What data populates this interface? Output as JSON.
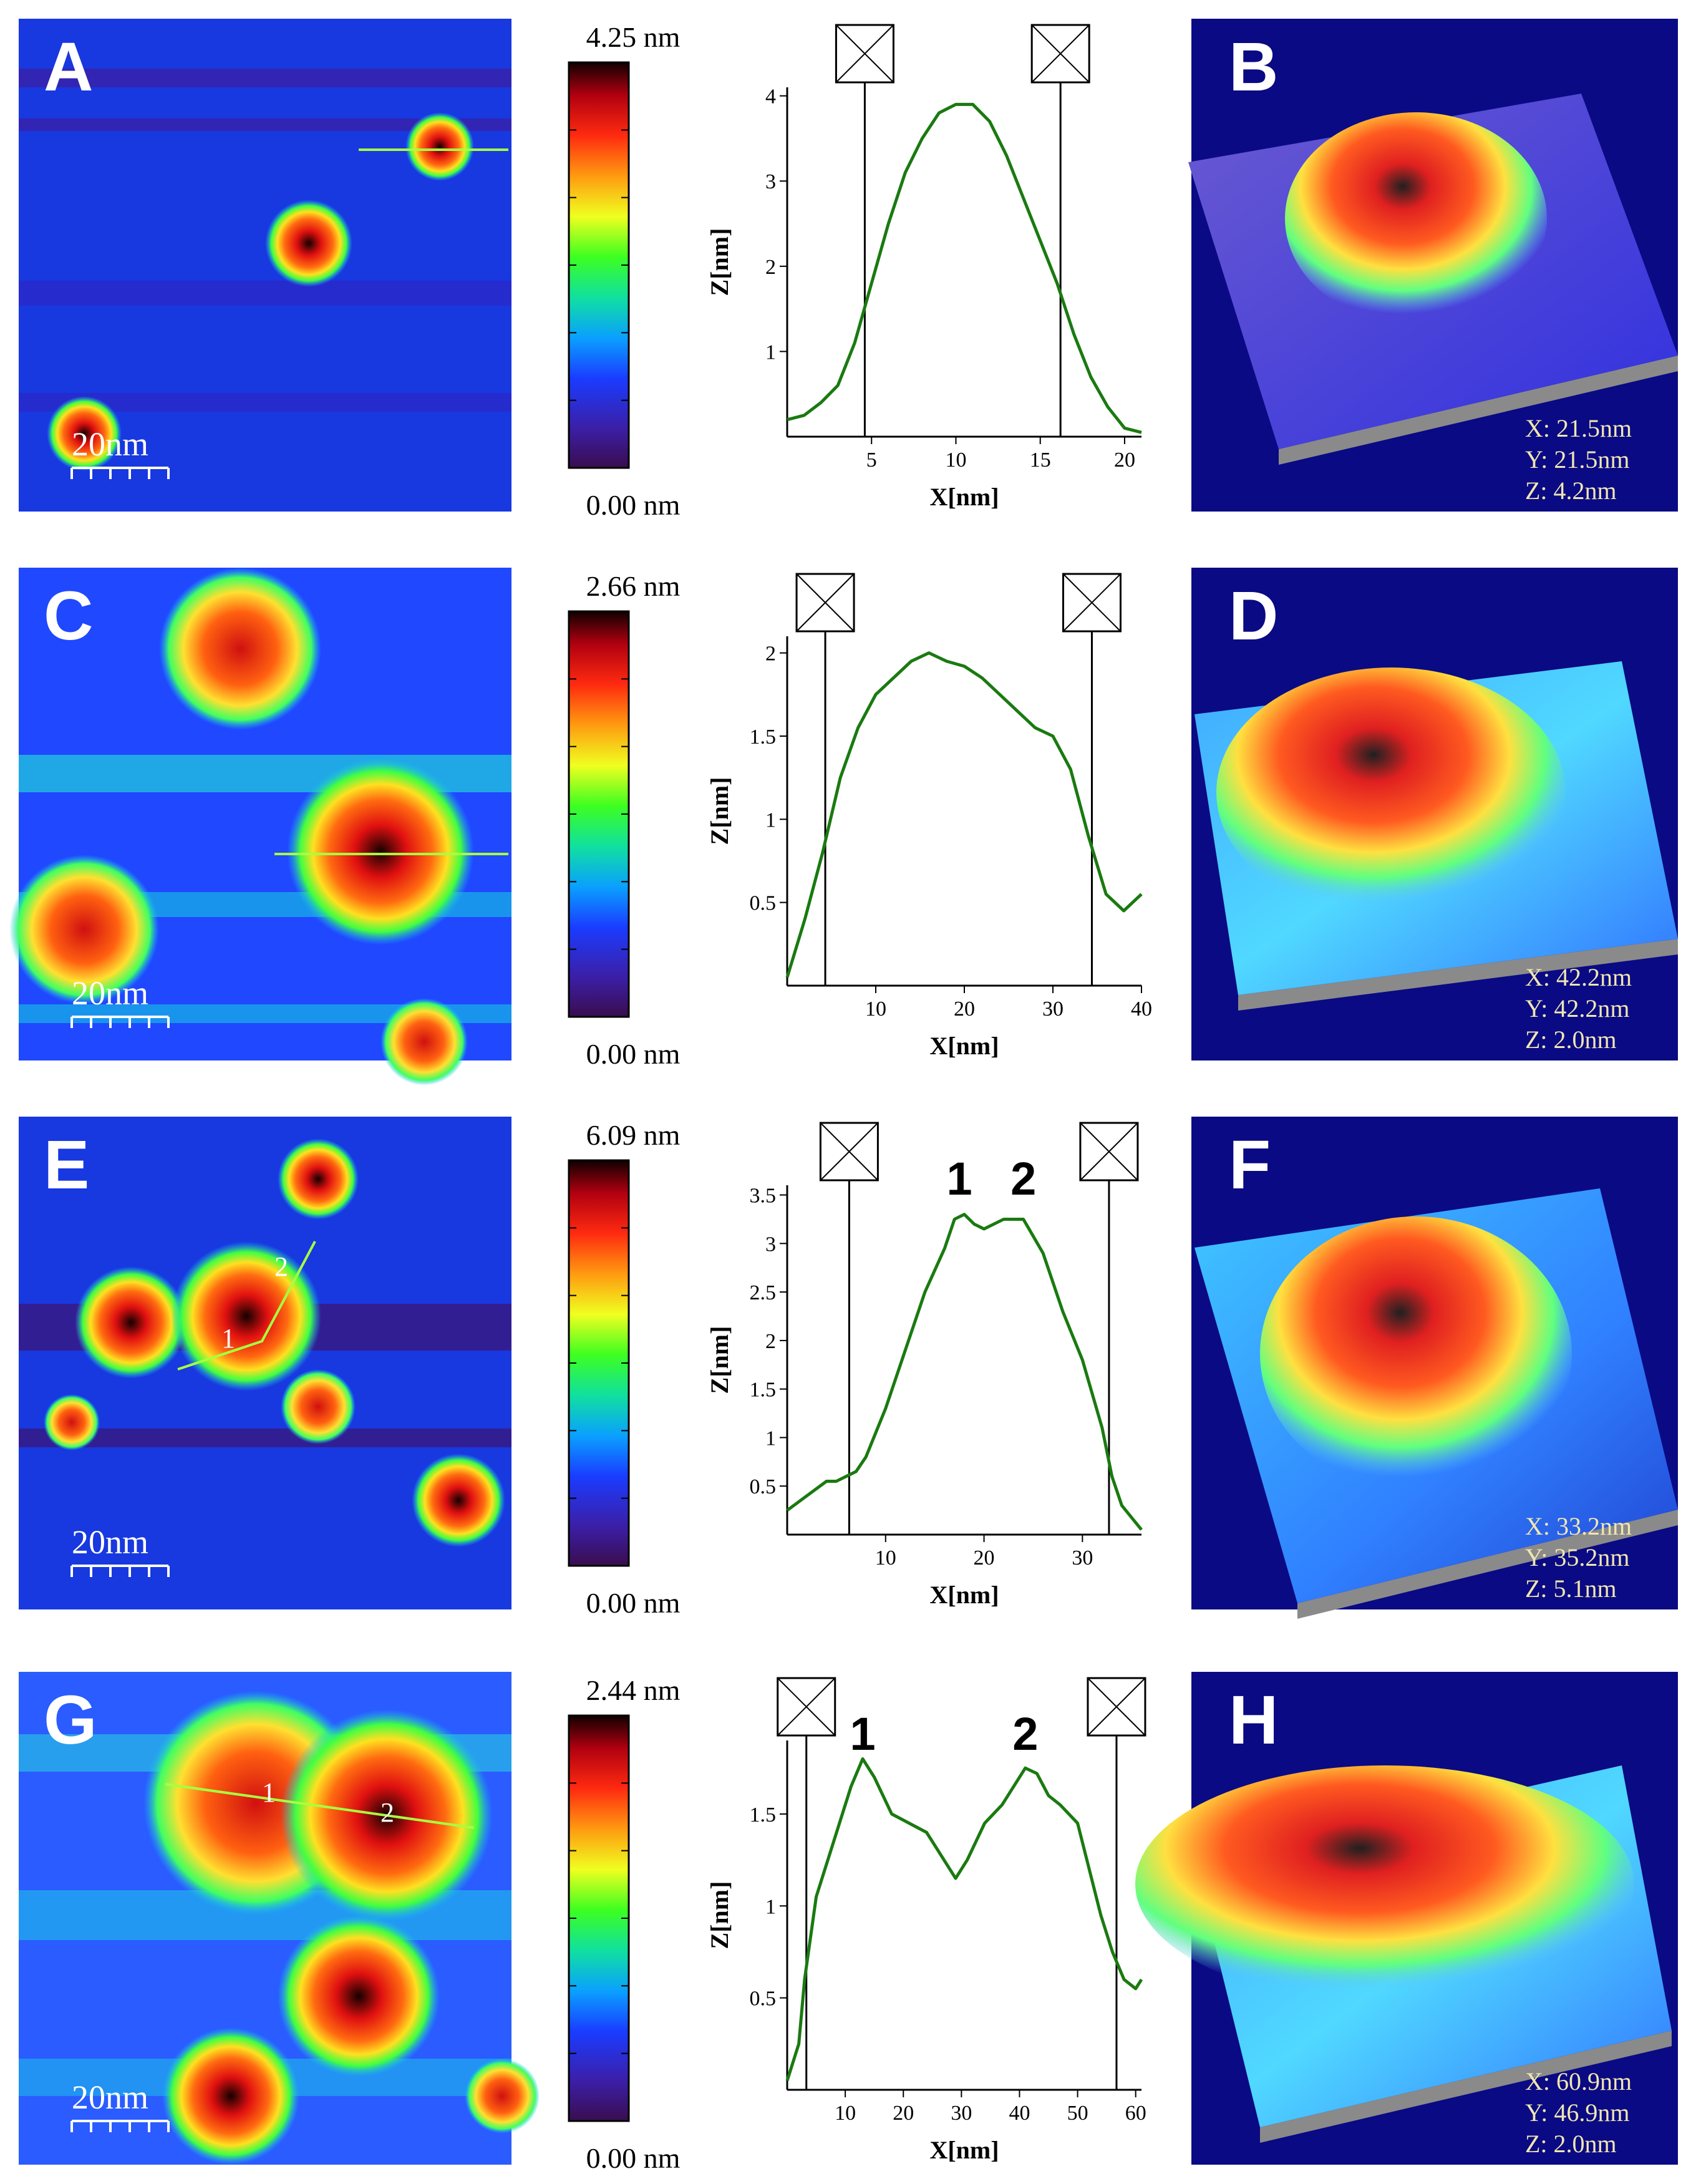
{
  "figure": {
    "rows": [
      {
        "afm_label": "A",
        "td_label": "B",
        "scale_bar": "20nm",
        "colorbar_max": "4.25 nm",
        "colorbar_min": "0.00 nm",
        "td_dims": [
          "X: 21.5nm",
          "Y: 21.5nm",
          "Z: 4.2nm"
        ],
        "peak_labels": [],
        "profile": {
          "xlabel": "X[nm]",
          "ylabel": "Z[nm]",
          "xlim": [
            0,
            21
          ],
          "ylim": [
            0,
            4.1
          ],
          "xticks": [
            5,
            10,
            15,
            20
          ],
          "yticks": [
            1,
            2,
            3,
            4
          ],
          "cursors": [
            4.6,
            16.2
          ],
          "x": [
            0,
            1,
            2,
            3,
            4,
            5,
            6,
            7,
            8,
            9,
            10,
            11,
            12,
            13,
            14,
            15,
            16,
            17,
            18,
            19,
            20,
            21
          ],
          "y": [
            0.2,
            0.25,
            0.4,
            0.6,
            1.1,
            1.8,
            2.5,
            3.1,
            3.5,
            3.8,
            3.9,
            3.9,
            3.7,
            3.3,
            2.8,
            2.3,
            1.8,
            1.2,
            0.7,
            0.35,
            0.1,
            0.05
          ]
        }
      },
      {
        "afm_label": "C",
        "td_label": "D",
        "scale_bar": "20nm",
        "colorbar_max": "2.66 nm",
        "colorbar_min": "0.00 nm",
        "td_dims": [
          "X: 42.2nm",
          "Y: 42.2nm",
          "Z: 2.0nm"
        ],
        "peak_labels": [],
        "profile": {
          "xlabel": "X[nm]",
          "ylabel": "Z[nm]",
          "xlim": [
            0,
            40
          ],
          "ylim": [
            0,
            2.1
          ],
          "xticks": [
            10,
            20,
            30,
            40
          ],
          "yticks": [
            0.5,
            1,
            1.5,
            2
          ],
          "cursors": [
            4.3,
            34.4
          ],
          "x": [
            0,
            2,
            4,
            6,
            8,
            10,
            12,
            14,
            16,
            18,
            20,
            22,
            24,
            26,
            28,
            30,
            32,
            34,
            36,
            38,
            40
          ],
          "y": [
            0.05,
            0.4,
            0.8,
            1.25,
            1.55,
            1.75,
            1.85,
            1.95,
            2.0,
            1.95,
            1.92,
            1.85,
            1.75,
            1.65,
            1.55,
            1.5,
            1.3,
            0.9,
            0.55,
            0.45,
            0.55
          ]
        }
      },
      {
        "afm_label": "E",
        "td_label": "F",
        "scale_bar": "20nm",
        "colorbar_max": "6.09 nm",
        "colorbar_min": "0.00 nm",
        "td_dims": [
          "X: 33.2nm",
          "Y: 35.2nm",
          "Z: 5.1nm"
        ],
        "peak_labels": [
          "1",
          "2"
        ],
        "profile": {
          "xlabel": "X[nm]",
          "ylabel": "Z[nm]",
          "xlim": [
            0,
            36
          ],
          "ylim": [
            0,
            3.6
          ],
          "xticks": [
            10,
            20,
            30
          ],
          "yticks": [
            0.5,
            1,
            1.5,
            2,
            2.5,
            3,
            3.5
          ],
          "cursors": [
            6.3,
            32.7
          ],
          "peaks": [
            {
              "label": "1",
              "x": 17.5
            },
            {
              "label": "2",
              "x": 24
            }
          ],
          "x": [
            0,
            2,
            4,
            5,
            6,
            7,
            8,
            10,
            12,
            14,
            16,
            17,
            18,
            19,
            20,
            22,
            24,
            26,
            28,
            30,
            32,
            33,
            34,
            36
          ],
          "y": [
            0.25,
            0.4,
            0.55,
            0.55,
            0.6,
            0.65,
            0.8,
            1.3,
            1.9,
            2.5,
            2.95,
            3.25,
            3.3,
            3.2,
            3.15,
            3.25,
            3.25,
            2.9,
            2.3,
            1.8,
            1.1,
            0.6,
            0.3,
            0.05
          ]
        }
      },
      {
        "afm_label": "G",
        "td_label": "H",
        "scale_bar": "20nm",
        "colorbar_max": "2.44 nm",
        "colorbar_min": "0.00 nm",
        "td_dims": [
          "X: 60.9nm",
          "Y: 46.9nm",
          "Z: 2.0nm"
        ],
        "peak_labels": [
          "1",
          "2"
        ],
        "profile": {
          "xlabel": "X[nm]",
          "ylabel": "Z[nm]",
          "xlim": [
            0,
            61
          ],
          "ylim": [
            0,
            1.9
          ],
          "xticks": [
            10,
            20,
            30,
            40,
            50,
            60
          ],
          "yticks": [
            0.5,
            1,
            1.5
          ],
          "cursors": [
            3.3,
            56.7
          ],
          "peaks": [
            {
              "label": "1",
              "x": 13
            },
            {
              "label": "2",
              "x": 41
            }
          ],
          "x": [
            0,
            2,
            3,
            5,
            8,
            11,
            13,
            15,
            18,
            21,
            24,
            27,
            29,
            31,
            34,
            37,
            39,
            41,
            43,
            45,
            47,
            50,
            52,
            54,
            56,
            58,
            60,
            61
          ],
          "y": [
            0.05,
            0.25,
            0.6,
            1.05,
            1.35,
            1.65,
            1.8,
            1.7,
            1.5,
            1.45,
            1.4,
            1.25,
            1.15,
            1.25,
            1.45,
            1.55,
            1.65,
            1.75,
            1.72,
            1.6,
            1.55,
            1.45,
            1.2,
            0.95,
            0.75,
            0.6,
            0.55,
            0.6
          ]
        }
      }
    ]
  }
}
